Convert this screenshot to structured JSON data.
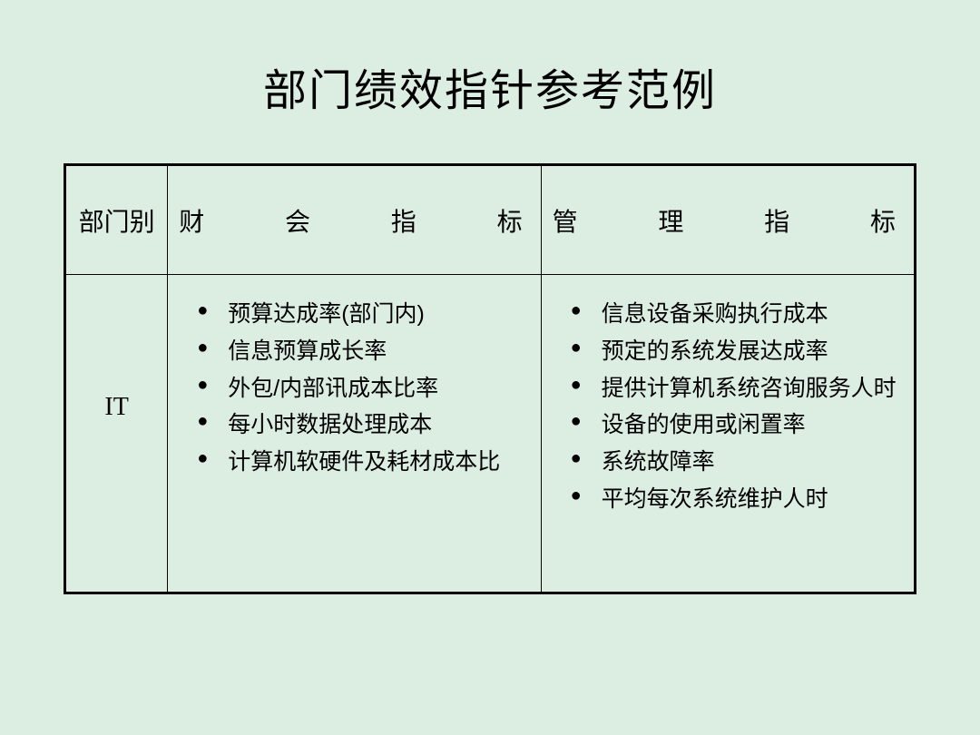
{
  "page": {
    "title": "部门绩效指针参考范例",
    "background_color": "#dceee2",
    "border_color": "#000000",
    "title_fontsize": 48,
    "body_fontsize": 25
  },
  "table": {
    "type": "table",
    "columns": [
      {
        "key": "dept",
        "label": "部门别",
        "width": "12%",
        "align": "center"
      },
      {
        "key": "finance",
        "label": "财会指标",
        "width": "44%",
        "align": "justify"
      },
      {
        "key": "mgmt",
        "label": "管理指标",
        "width": "44%",
        "align": "justify"
      }
    ],
    "header_spaced": {
      "finance_chars": [
        "财",
        "会",
        "指",
        "标"
      ],
      "mgmt_chars": [
        "管",
        "理",
        "指",
        "标"
      ]
    },
    "rows": [
      {
        "dept": "IT",
        "finance_items": [
          "预算达成率(部门内)",
          "信息预算成长率",
          "外包/内部讯成本比率",
          "每小时数据处理成本",
          "计算机软硬件及耗材成本比"
        ],
        "mgmt_items": [
          "信息设备采购执行成本",
          "预定的系统发展达成率",
          "提供计算机系统咨询服务人时",
          "设备的使用或闲置率",
          "系统故障率",
          "平均每次系统维护人时"
        ]
      }
    ]
  }
}
